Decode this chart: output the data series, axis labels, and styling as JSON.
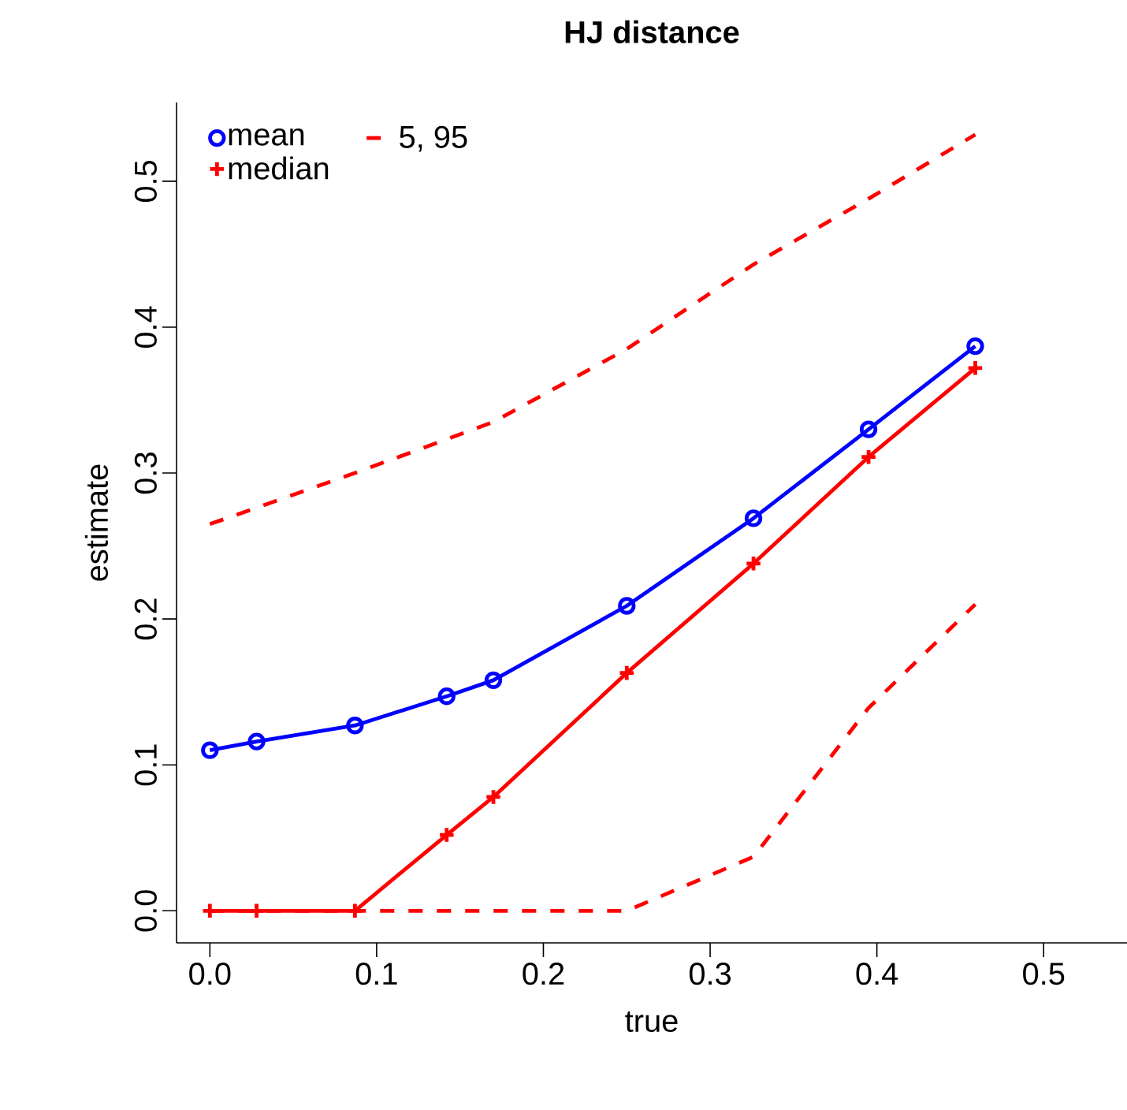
{
  "chart_data": {
    "type": "line",
    "title": "HJ distance",
    "xlabel": "true",
    "ylabel": "estimate",
    "xlim": [
      -0.02,
      0.55
    ],
    "ylim": [
      -0.022,
      0.554
    ],
    "xticks": [
      {
        "value": 0,
        "label": "0.0"
      },
      {
        "value": 0.1,
        "label": "0.1"
      },
      {
        "value": 0.2,
        "label": "0.2"
      },
      {
        "value": 0.3,
        "label": "0.3"
      },
      {
        "value": 0.4,
        "label": "0.4"
      },
      {
        "value": 0.5,
        "label": "0.5"
      }
    ],
    "yticks": [
      {
        "value": 0,
        "label": "0.0"
      },
      {
        "value": 0.1,
        "label": "0.1"
      },
      {
        "value": 0.2,
        "label": "0.2"
      },
      {
        "value": 0.3,
        "label": "0.3"
      },
      {
        "value": 0.4,
        "label": "0.4"
      },
      {
        "value": 0.5,
        "label": "0.5"
      }
    ],
    "x": [
      0,
      0.028,
      0.087,
      0.142,
      0.17,
      0.25,
      0.326,
      0.395,
      0.459
    ],
    "legend": "top left",
    "grid": false,
    "series": [
      {
        "name": "mean",
        "color": "#0000ff",
        "marker": "circle",
        "line_style": "solid",
        "values": [
          0.11,
          0.116,
          0.127,
          0.147,
          0.158,
          0.209,
          0.269,
          0.33,
          0.387
        ]
      },
      {
        "name": "5, 95",
        "color": "#ff0000",
        "marker": "none",
        "line_style": "dashed",
        "x": [
          0,
          0.087,
          0.17,
          0.25,
          0.326,
          0.395,
          0.459
        ],
        "values": [
          0.265,
          0.3,
          0.335,
          0.385,
          0.443,
          0.488,
          0.532
        ]
      },
      {
        "name": "median",
        "color": "#ff0000",
        "marker": "cross",
        "line_style": "solid",
        "values": [
          0,
          0,
          0,
          0.052,
          0.078,
          0.163,
          0.238,
          0.311,
          0.372
        ]
      },
      {
        "color": "#ff0000",
        "marker": "none",
        "line_style": "dashed",
        "x": [
          0,
          0.087,
          0.17,
          0.25,
          0.326,
          0.395,
          0.459
        ],
        "values": [
          0,
          0,
          0,
          0,
          0.037,
          0.139,
          0.21
        ]
      }
    ]
  }
}
